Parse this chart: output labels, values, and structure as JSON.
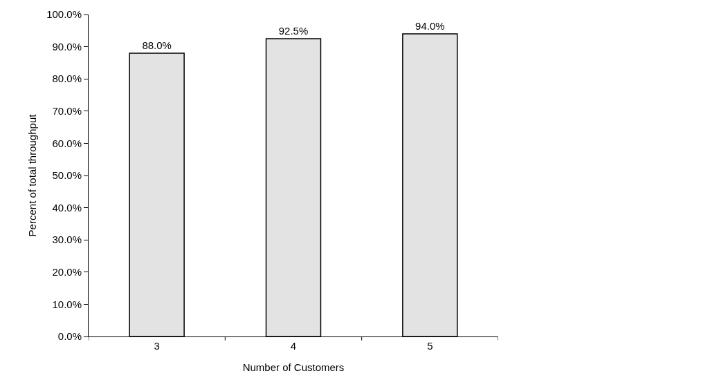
{
  "chart_data": {
    "type": "bar",
    "xlabel": "Number of Customers",
    "ylabel": "Percent of total throughput",
    "categories": [
      "3",
      "4",
      "5"
    ],
    "values": [
      88.0,
      92.5,
      94.0
    ],
    "color": "#e3e3e3",
    "value_labels": [
      "88.0%",
      "92.5%",
      "94.0%"
    ],
    "ylim": [
      0,
      100
    ],
    "yticks": [
      {
        "value": 0,
        "label": "0.0%"
      },
      {
        "value": 10,
        "label": "10.0%"
      },
      {
        "value": 20,
        "label": "20.0%"
      },
      {
        "value": 30,
        "label": "30.0%"
      },
      {
        "value": 40,
        "label": "40.0%"
      },
      {
        "value": 50,
        "label": "50.0%"
      },
      {
        "value": 60,
        "label": "60.0%"
      },
      {
        "value": 70,
        "label": "70.0%"
      },
      {
        "value": 80,
        "label": "80.0%"
      },
      {
        "value": 90,
        "label": "90.0%"
      },
      {
        "value": 100,
        "label": "100.0%"
      }
    ],
    "tick_labels": true
  }
}
